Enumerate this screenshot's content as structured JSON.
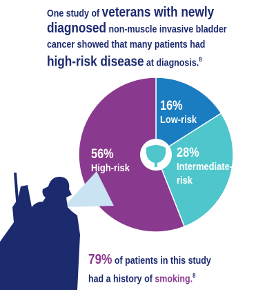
{
  "title": {
    "lines": [
      [
        "One study of ",
        "veterans with newly"
      ],
      [
        "diagnosed",
        " non-muscle invasive bladder"
      ],
      [
        "cancer showed that many patients had"
      ],
      [
        "high-risk disease",
        " at diagnosis.",
        "8"
      ]
    ]
  },
  "chart_data": {
    "type": "pie",
    "categories": [
      "Low-risk",
      "Intermediate-risk",
      "High-risk"
    ],
    "values": [
      16,
      28,
      56
    ],
    "value_labels": [
      "16%",
      "28%",
      "56%"
    ],
    "colors": [
      "#1a7cc1",
      "#4ec6cc",
      "#8a3a8e"
    ]
  },
  "footnote": {
    "lines": [
      [
        "79%",
        " of patients in this study"
      ],
      [
        "had a history of ",
        "smoking.",
        "8"
      ]
    ]
  }
}
